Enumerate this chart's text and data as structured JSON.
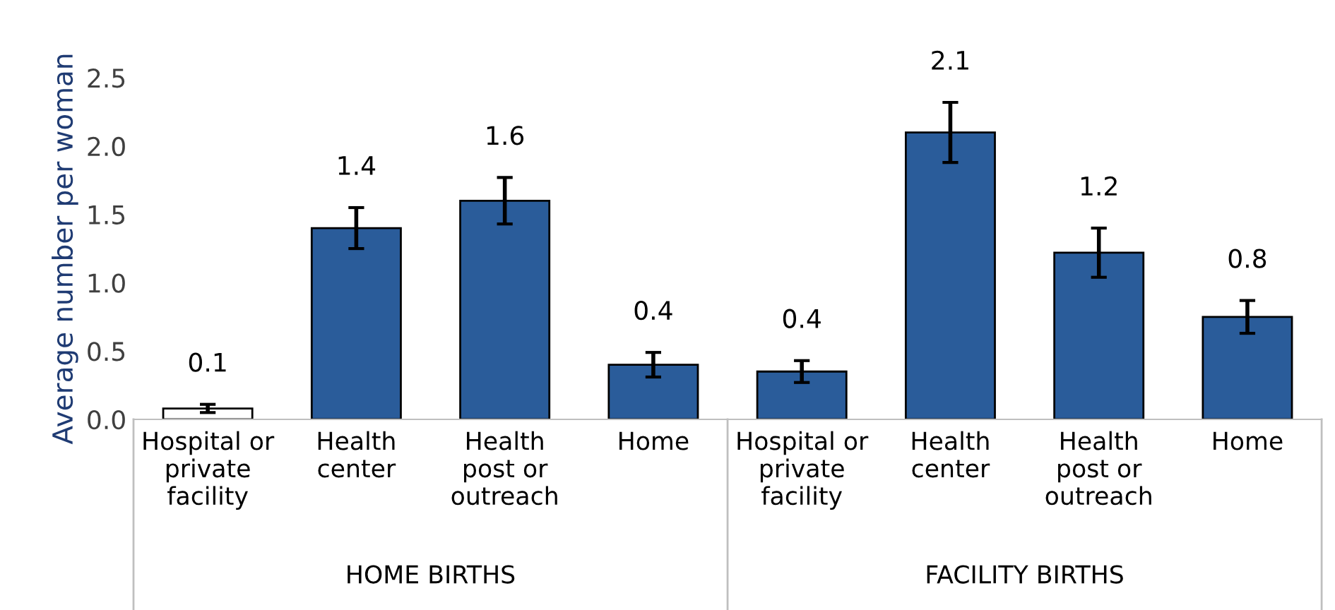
{
  "chart_data": {
    "type": "bar",
    "ylabel": "Average number per woman",
    "categories": [
      "Hospital or\nprivate\nfacility",
      "Health\ncenter",
      "Health\npost or\noutreach",
      "Home",
      "Hospital or\nprivate\nfacility",
      "Health\ncenter",
      "Health\npost or\noutreach",
      "Home"
    ],
    "values": [
      0.08,
      1.4,
      1.6,
      0.4,
      0.35,
      2.1,
      1.22,
      0.75
    ],
    "value_labels": [
      "0.1",
      "1.4",
      "1.6",
      "0.4",
      "0.4",
      "2.1",
      "1.2",
      "0.8"
    ],
    "errors": [
      0.03,
      0.15,
      0.17,
      0.09,
      0.08,
      0.22,
      0.18,
      0.12
    ],
    "colors": [
      "#ffffff",
      "#2a5c9a",
      "#2a5c9a",
      "#2a5c9a",
      "#2a5c9a",
      "#2a5c9a",
      "#2a5c9a",
      "#2a5c9a"
    ],
    "annotations": [
      "HOME BIRTHS",
      "FACILITY BIRTHS"
    ],
    "ylim": [
      0,
      2.5
    ],
    "yticks": [
      {
        "value": 0,
        "label": "0.0"
      },
      {
        "value": 0.5,
        "label": "0.5"
      },
      {
        "value": 1,
        "label": "1.0"
      },
      {
        "value": 1.5,
        "label": "1.5"
      },
      {
        "value": 2,
        "label": "2.0"
      },
      {
        "value": 2.5,
        "label": "2.5"
      }
    ],
    "grid": false,
    "legend": false
  }
}
